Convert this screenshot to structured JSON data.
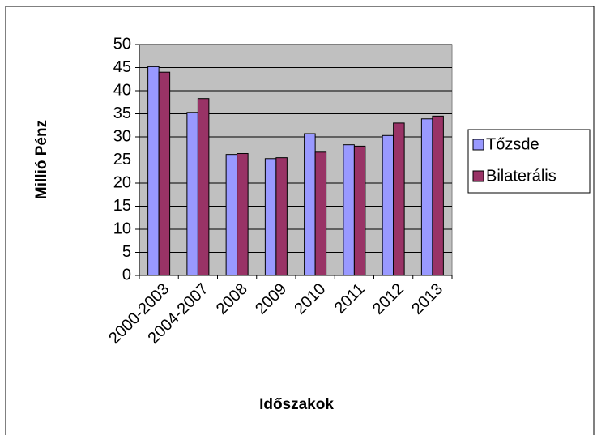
{
  "chart_data": {
    "type": "bar",
    "x_label": "Időszakok",
    "y_label": "Millió Pénz",
    "categories": [
      "2000-2003",
      "2004-2007",
      "2008",
      "2009",
      "2010",
      "2011",
      "2012",
      "2013"
    ],
    "series": [
      {
        "name": "Tőzsde",
        "color": "#9999ff",
        "values": [
          45.2,
          35.3,
          26.2,
          25.3,
          30.7,
          28.3,
          30.3,
          33.9
        ]
      },
      {
        "name": "Bilaterális",
        "color": "#993366",
        "values": [
          44,
          38.3,
          26.4,
          25.5,
          26.7,
          28.0,
          33.0,
          34.5
        ]
      }
    ],
    "ylim": [
      0,
      50
    ],
    "yticks": [
      0,
      5,
      10,
      15,
      20,
      25,
      30,
      35,
      40,
      45,
      50
    ],
    "grid": true,
    "legend": "right"
  }
}
